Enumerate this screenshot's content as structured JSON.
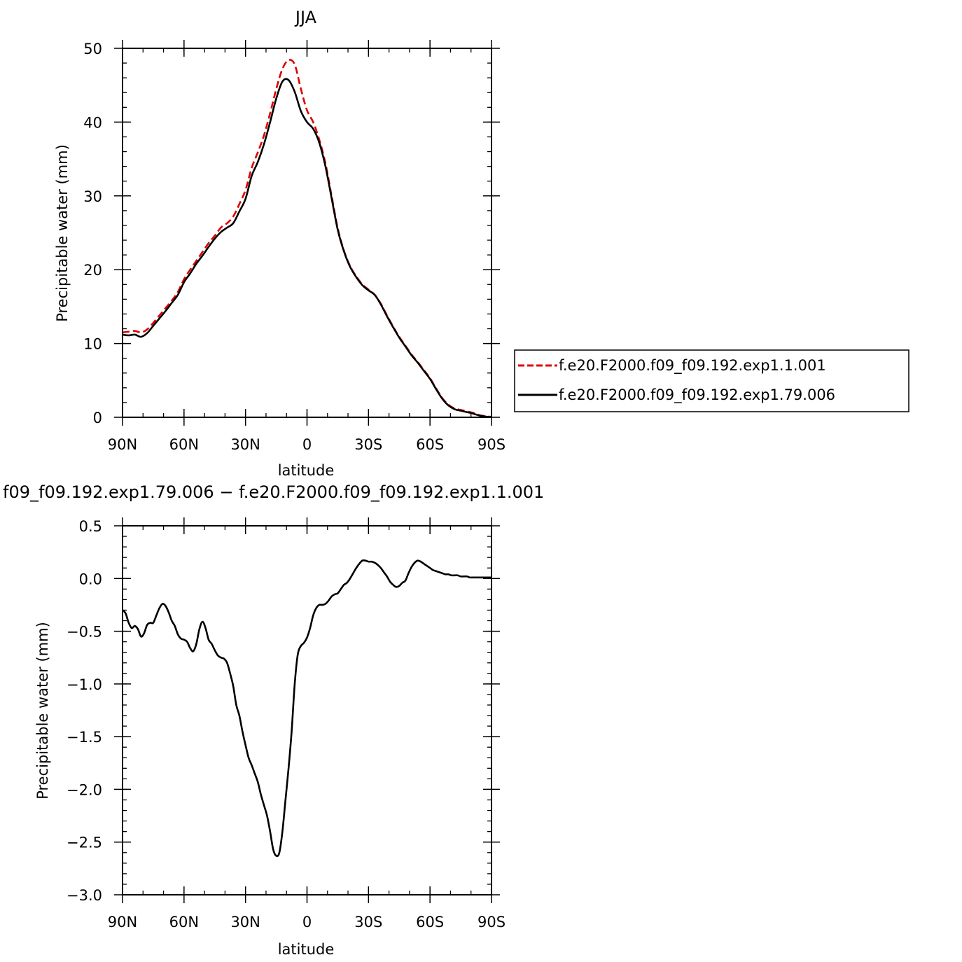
{
  "chart_data": [
    {
      "type": "line",
      "title": "JJA",
      "xlabel": "latitude",
      "ylabel": "Precipitable water (mm)",
      "xlim": [
        90,
        -90
      ],
      "ylim": [
        0,
        50
      ],
      "x_ticks": [
        {
          "value": 90,
          "label": "90N"
        },
        {
          "value": 60,
          "label": "60N"
        },
        {
          "value": 30,
          "label": "30N"
        },
        {
          "value": 0,
          "label": "0"
        },
        {
          "value": -30,
          "label": "30S"
        },
        {
          "value": -60,
          "label": "60S"
        },
        {
          "value": -90,
          "label": "90S"
        }
      ],
      "y_ticks": [
        {
          "value": 0,
          "label": "0"
        },
        {
          "value": 10,
          "label": "10"
        },
        {
          "value": 20,
          "label": "20"
        },
        {
          "value": 30,
          "label": "30"
        },
        {
          "value": 40,
          "label": "40"
        },
        {
          "value": 50,
          "label": "50"
        }
      ],
      "legend_position": "right",
      "series": [
        {
          "name": "f.e20.F2000.f09_f09.192.exp1.1.001",
          "color": "#e00000",
          "dash": "dashed",
          "x": [
            90,
            87,
            84,
            81,
            78,
            75,
            72,
            69,
            66,
            63,
            60,
            57,
            54,
            51,
            48,
            45,
            42,
            39,
            36,
            33,
            30,
            27,
            24,
            21,
            18,
            15,
            12,
            9,
            6,
            3,
            0,
            -3,
            -6,
            -9,
            -12,
            -15,
            -18,
            -21,
            -24,
            -27,
            -30,
            -33,
            -36,
            -39,
            -42,
            -45,
            -48,
            -51,
            -54,
            -57,
            -60,
            -63,
            -66,
            -69,
            -72,
            -75,
            -78,
            -81,
            -84,
            -87,
            -90
          ],
          "y": [
            11.5,
            11.6,
            11.7,
            11.5,
            11.9,
            12.8,
            13.8,
            14.8,
            15.8,
            17.0,
            18.7,
            20.0,
            21.2,
            22.4,
            23.6,
            24.6,
            25.7,
            26.3,
            27.2,
            28.9,
            30.8,
            33.8,
            35.9,
            38.2,
            41.2,
            44.5,
            47.2,
            48.4,
            47.8,
            44.5,
            41.6,
            40.0,
            37.6,
            34.4,
            30.0,
            25.6,
            22.6,
            20.5,
            19.1,
            18.0,
            17.3,
            16.6,
            15.4,
            13.8,
            12.3,
            10.9,
            9.7,
            8.5,
            7.5,
            6.4,
            5.3,
            3.9,
            2.6,
            1.7,
            1.2,
            1.0,
            0.8,
            0.6,
            0.3,
            0.15,
            0.05
          ]
        },
        {
          "name": "f.e20.F2000.f09_f09.192.exp1.79.006",
          "color": "#000000",
          "dash": "solid",
          "x": [
            90,
            87,
            84,
            81,
            78,
            75,
            72,
            69,
            66,
            63,
            60,
            57,
            54,
            51,
            48,
            45,
            42,
            39,
            36,
            33,
            30,
            27,
            24,
            21,
            18,
            15,
            12,
            9,
            6,
            3,
            0,
            -3,
            -6,
            -9,
            -12,
            -15,
            -18,
            -21,
            -24,
            -27,
            -30,
            -33,
            -36,
            -39,
            -42,
            -45,
            -48,
            -51,
            -54,
            -57,
            -60,
            -63,
            -66,
            -69,
            -72,
            -75,
            -78,
            -81,
            -84,
            -87,
            -90
          ],
          "y": [
            11.2,
            11.1,
            11.2,
            10.9,
            11.4,
            12.4,
            13.4,
            14.4,
            15.5,
            16.6,
            18.3,
            19.5,
            20.8,
            21.9,
            23.1,
            24.2,
            25.1,
            25.7,
            26.3,
            27.9,
            29.6,
            32.7,
            34.6,
            37.0,
            40.0,
            43.2,
            45.5,
            45.7,
            44.1,
            41.5,
            40.0,
            39.1,
            37.2,
            34.0,
            29.7,
            25.4,
            22.5,
            20.4,
            19.0,
            17.9,
            17.2,
            16.6,
            15.3,
            13.7,
            12.2,
            10.8,
            9.6,
            8.4,
            7.4,
            6.3,
            5.2,
            3.8,
            2.5,
            1.6,
            1.1,
            0.9,
            0.7,
            0.5,
            0.25,
            0.1,
            0.02
          ]
        }
      ]
    },
    {
      "type": "line",
      "title": "f09_f09.192.exp1.79.006 − f.e20.F2000.f09_f09.192.exp1.1.001",
      "xlabel": "latitude",
      "ylabel": "Precipitable water (mm)",
      "xlim": [
        90,
        -90
      ],
      "ylim": [
        -3.0,
        0.5
      ],
      "x_ticks": [
        {
          "value": 90,
          "label": "90N"
        },
        {
          "value": 60,
          "label": "60N"
        },
        {
          "value": 30,
          "label": "30N"
        },
        {
          "value": 0,
          "label": "0"
        },
        {
          "value": -30,
          "label": "30S"
        },
        {
          "value": -60,
          "label": "60S"
        },
        {
          "value": -90,
          "label": "90S"
        }
      ],
      "y_ticks": [
        {
          "value": 0.5,
          "label": "0.5"
        },
        {
          "value": 0.0,
          "label": "0.0"
        },
        {
          "value": -0.5,
          "label": "−0.5"
        },
        {
          "value": -1.0,
          "label": "−1.0"
        },
        {
          "value": -1.5,
          "label": "−1.5"
        },
        {
          "value": -2.0,
          "label": "−2.0"
        },
        {
          "value": -2.5,
          "label": "−2.5"
        },
        {
          "value": -3.0,
          "label": "−3.0"
        }
      ],
      "series": [
        {
          "color": "#000000",
          "dash": "solid",
          "x": [
            90,
            88.5,
            87,
            85.5,
            84,
            82.5,
            81,
            79.5,
            78,
            76.5,
            75,
            73.5,
            72,
            70.5,
            69,
            67.5,
            66,
            64.5,
            63,
            61.5,
            60,
            58.5,
            57,
            55.5,
            54,
            52.5,
            51,
            49.5,
            48,
            46.5,
            45,
            43.5,
            42,
            40.5,
            39,
            37.5,
            36,
            34.5,
            33,
            31.5,
            30,
            28.5,
            27,
            25.5,
            24,
            22.5,
            21,
            19.5,
            18,
            16.5,
            15,
            13.5,
            12,
            10.5,
            9,
            7.5,
            6,
            4.5,
            3,
            1.5,
            0,
            -1.5,
            -3,
            -4.5,
            -6,
            -7.5,
            -9,
            -10.5,
            -12,
            -13.5,
            -15,
            -16.5,
            -18,
            -19.5,
            -21,
            -22.5,
            -24,
            -25.5,
            -27,
            -28.5,
            -30,
            -31.5,
            -33,
            -34.5,
            -36,
            -37.5,
            -39,
            -40.5,
            -42,
            -43.5,
            -45,
            -46.5,
            -48,
            -49.5,
            -51,
            -52.5,
            -54,
            -55.5,
            -57,
            -58.5,
            -60,
            -61.5,
            -63,
            -64.5,
            -66,
            -67.5,
            -69,
            -70.5,
            -72,
            -73.5,
            -75,
            -76.5,
            -78,
            -79.5,
            -81,
            -82.5,
            -84,
            -85.5,
            -87,
            -88.5,
            -90
          ],
          "y": [
            -0.3,
            -0.33,
            -0.42,
            -0.47,
            -0.45,
            -0.48,
            -0.55,
            -0.52,
            -0.44,
            -0.42,
            -0.42,
            -0.35,
            -0.28,
            -0.24,
            -0.26,
            -0.32,
            -0.4,
            -0.45,
            -0.53,
            -0.57,
            -0.58,
            -0.6,
            -0.66,
            -0.69,
            -0.62,
            -0.48,
            -0.41,
            -0.47,
            -0.58,
            -0.62,
            -0.68,
            -0.73,
            -0.75,
            -0.76,
            -0.8,
            -0.9,
            -1.02,
            -1.2,
            -1.3,
            -1.45,
            -1.58,
            -1.7,
            -1.77,
            -1.85,
            -1.93,
            -2.05,
            -2.15,
            -2.25,
            -2.4,
            -2.57,
            -2.63,
            -2.6,
            -2.4,
            -2.1,
            -1.8,
            -1.45,
            -1.0,
            -0.72,
            -0.64,
            -0.61,
            -0.56,
            -0.47,
            -0.35,
            -0.28,
            -0.25,
            -0.25,
            -0.24,
            -0.21,
            -0.17,
            -0.15,
            -0.14,
            -0.1,
            -0.06,
            -0.04,
            0.0,
            0.05,
            0.1,
            0.14,
            0.17,
            0.17,
            0.16,
            0.16,
            0.15,
            0.13,
            0.1,
            0.06,
            0.02,
            -0.03,
            -0.06,
            -0.08,
            -0.07,
            -0.04,
            -0.02,
            0.05,
            0.11,
            0.15,
            0.17,
            0.16,
            0.14,
            0.12,
            0.1,
            0.08,
            0.07,
            0.06,
            0.05,
            0.04,
            0.04,
            0.03,
            0.03,
            0.03,
            0.02,
            0.02,
            0.02,
            0.01,
            0.01,
            0.01,
            0.01,
            0.01,
            0.01,
            0.01,
            0.01
          ]
        }
      ]
    }
  ]
}
